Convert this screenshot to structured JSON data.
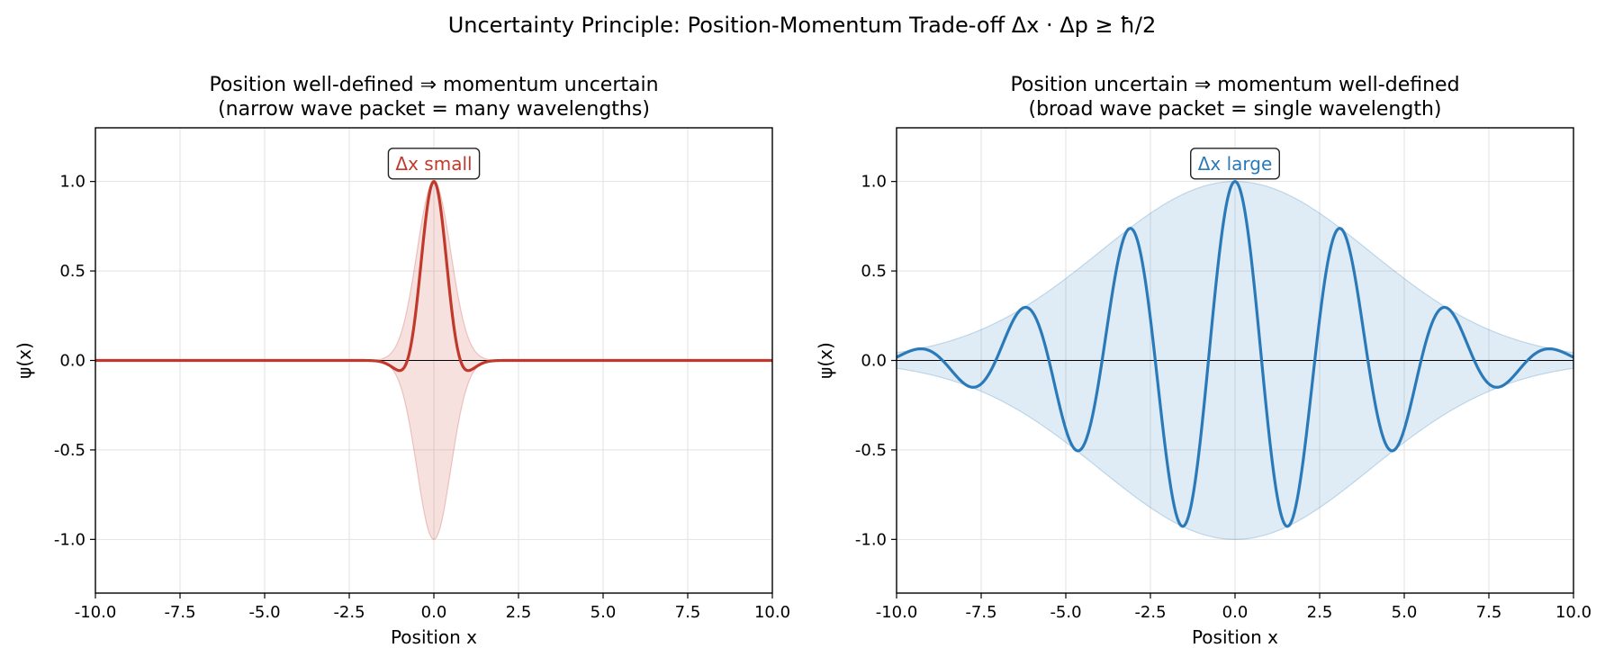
{
  "figure": {
    "title": "Uncertainty Principle: Position-Momentum Trade-off Δx · Δp ≥ ħ/2"
  },
  "chart_data": [
    {
      "type": "line",
      "title": "Position well-defined ⇒ momentum uncertain",
      "subtitle": "(narrow wave packet = many wavelengths)",
      "xlabel": "Position x",
      "ylabel": "ψ(x)",
      "xlim": [
        -10,
        10
      ],
      "ylim": [
        -1.3,
        1.3
      ],
      "xticks": [
        "-10.0",
        "-7.5",
        "-5.0",
        "-2.5",
        "0.0",
        "2.5",
        "5.0",
        "7.5",
        "10.0"
      ],
      "yticks": [
        "-1.0",
        "-0.5",
        "0.0",
        "0.5",
        "1.0"
      ],
      "grid": true,
      "color": "#c0392b",
      "envelope_fill": true,
      "packet": {
        "center": 0,
        "sigma": 0.5,
        "wavenumber": 2
      },
      "annotation": {
        "text": "Δx small",
        "x": 0,
        "y": 1.1
      }
    },
    {
      "type": "line",
      "title": "Position uncertain ⇒ momentum well-defined",
      "subtitle": "(broad wave packet = single wavelength)",
      "xlabel": "Position x",
      "ylabel": "ψ(x)",
      "xlim": [
        -10,
        10
      ],
      "ylim": [
        -1.3,
        1.3
      ],
      "xticks": [
        "-10.0",
        "-7.5",
        "-5.0",
        "-2.5",
        "0.0",
        "2.5",
        "5.0",
        "7.5",
        "10.0"
      ],
      "yticks": [
        "-1.0",
        "-0.5",
        "0.0",
        "0.5",
        "1.0"
      ],
      "grid": true,
      "color": "#2a7ab9",
      "envelope_fill": true,
      "packet": {
        "center": 0,
        "sigma": 4,
        "wavenumber": 2
      },
      "annotation": {
        "text": "Δx large",
        "x": 0,
        "y": 1.1
      }
    }
  ]
}
